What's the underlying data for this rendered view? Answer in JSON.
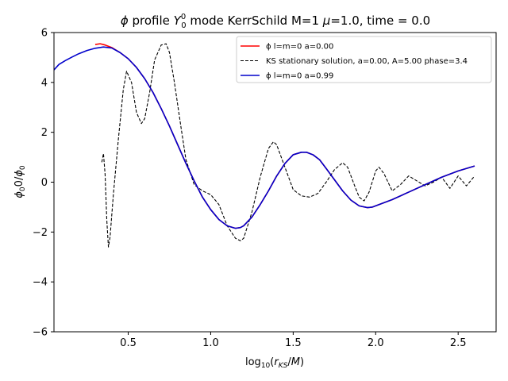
{
  "chart_data": {
    "type": "line",
    "title": "ϕ profile Y00 mode KerrSchild M=1 μ=1.0, time = 0.0",
    "xlabel": "log10(rKS/M)",
    "ylabel": "ϕ00/ϕ0",
    "xlim": [
      0.05,
      2.73
    ],
    "ylim": [
      -6,
      6
    ],
    "xticks": [
      0.5,
      1.0,
      1.5,
      2.0,
      2.5
    ],
    "xtick_labels": [
      "0.5",
      "1.0",
      "1.5",
      "2.0",
      "2.5"
    ],
    "yticks": [
      -6,
      -4,
      -2,
      0,
      2,
      4,
      6
    ],
    "ytick_labels": [
      "−6",
      "−4",
      "−2",
      "0",
      "2",
      "4",
      "6"
    ],
    "grid": false,
    "legend_position": "upper right",
    "series": [
      {
        "name": "ϕ l=m=0 a=0.00",
        "color": "#ff0000",
        "dash": "solid",
        "x": [
          0.3,
          0.33,
          0.36,
          0.4,
          0.45,
          0.5,
          0.55,
          0.6,
          0.65,
          0.7,
          0.75,
          0.8,
          0.85,
          0.9,
          0.95,
          1.0,
          1.05,
          1.1,
          1.15,
          1.18,
          1.2,
          1.25,
          1.3,
          1.35,
          1.4,
          1.45,
          1.5,
          1.55,
          1.58,
          1.62,
          1.66,
          1.7,
          1.75,
          1.8,
          1.85,
          1.9,
          1.95,
          1.98,
          2.02,
          2.1,
          2.2,
          2.3,
          2.4,
          2.5,
          2.6
        ],
        "y": [
          5.52,
          5.55,
          5.5,
          5.4,
          5.2,
          4.95,
          4.6,
          4.15,
          3.6,
          2.95,
          2.25,
          1.5,
          0.75,
          0.05,
          -0.6,
          -1.1,
          -1.5,
          -1.75,
          -1.85,
          -1.82,
          -1.75,
          -1.4,
          -0.9,
          -0.35,
          0.25,
          0.75,
          1.1,
          1.2,
          1.2,
          1.1,
          0.9,
          0.55,
          0.1,
          -0.35,
          -0.72,
          -0.95,
          -1.02,
          -1.0,
          -0.9,
          -0.7,
          -0.4,
          -0.1,
          0.2,
          0.45,
          0.65
        ]
      },
      {
        "name": "KS stationary solution, a=0.00, A=5.00 phase=3.4",
        "color": "#000000",
        "dash": "dashed",
        "x": [
          0.34,
          0.35,
          0.36,
          0.37,
          0.38,
          0.39,
          0.41,
          0.44,
          0.47,
          0.49,
          0.52,
          0.55,
          0.58,
          0.6,
          0.63,
          0.66,
          0.7,
          0.73,
          0.75,
          0.78,
          0.82,
          0.85,
          0.9,
          0.95,
          1.0,
          1.05,
          1.1,
          1.15,
          1.18,
          1.2,
          1.25,
          1.3,
          1.35,
          1.38,
          1.4,
          1.45,
          1.5,
          1.55,
          1.6,
          1.65,
          1.7,
          1.75,
          1.8,
          1.83,
          1.87,
          1.9,
          1.93,
          1.96,
          2.0,
          2.02,
          2.05,
          2.1,
          2.15,
          2.2,
          2.25,
          2.3,
          2.35,
          2.4,
          2.45,
          2.5,
          2.55,
          2.6
        ],
        "y": [
          0.8,
          1.15,
          0.3,
          -1.5,
          -2.6,
          -2.2,
          -0.5,
          1.7,
          3.7,
          4.45,
          4.0,
          2.8,
          2.35,
          2.55,
          3.6,
          4.9,
          5.5,
          5.55,
          5.2,
          4.0,
          2.2,
          0.9,
          -0.1,
          -0.35,
          -0.5,
          -0.9,
          -1.75,
          -2.25,
          -2.35,
          -2.25,
          -1.2,
          0.2,
          1.35,
          1.62,
          1.5,
          0.6,
          -0.3,
          -0.55,
          -0.6,
          -0.45,
          0.0,
          0.5,
          0.78,
          0.6,
          -0.1,
          -0.6,
          -0.75,
          -0.4,
          0.45,
          0.6,
          0.35,
          -0.35,
          -0.1,
          0.25,
          0.05,
          -0.15,
          0.0,
          0.2,
          -0.25,
          0.25,
          -0.15,
          0.25
        ]
      },
      {
        "name": "ϕ l=m=0 a=0.99",
        "color": "#0000cc",
        "dash": "solid",
        "x": [
          0.05,
          0.08,
          0.12,
          0.16,
          0.2,
          0.25,
          0.3,
          0.35,
          0.4,
          0.45,
          0.5,
          0.55,
          0.6,
          0.65,
          0.7,
          0.75,
          0.8,
          0.85,
          0.9,
          0.95,
          1.0,
          1.05,
          1.1,
          1.15,
          1.18,
          1.2,
          1.25,
          1.3,
          1.35,
          1.4,
          1.45,
          1.5,
          1.55,
          1.58,
          1.62,
          1.66,
          1.7,
          1.75,
          1.8,
          1.85,
          1.9,
          1.95,
          1.98,
          2.02,
          2.1,
          2.2,
          2.3,
          2.4,
          2.5,
          2.6
        ],
        "y": [
          4.5,
          4.72,
          4.88,
          5.02,
          5.15,
          5.28,
          5.37,
          5.42,
          5.38,
          5.2,
          4.95,
          4.6,
          4.15,
          3.6,
          2.95,
          2.25,
          1.5,
          0.75,
          0.05,
          -0.6,
          -1.1,
          -1.5,
          -1.75,
          -1.85,
          -1.82,
          -1.75,
          -1.4,
          -0.9,
          -0.35,
          0.25,
          0.75,
          1.1,
          1.2,
          1.2,
          1.1,
          0.9,
          0.55,
          0.1,
          -0.35,
          -0.72,
          -0.95,
          -1.02,
          -1.0,
          -0.9,
          -0.7,
          -0.4,
          -0.1,
          0.2,
          0.45,
          0.65
        ]
      }
    ]
  }
}
